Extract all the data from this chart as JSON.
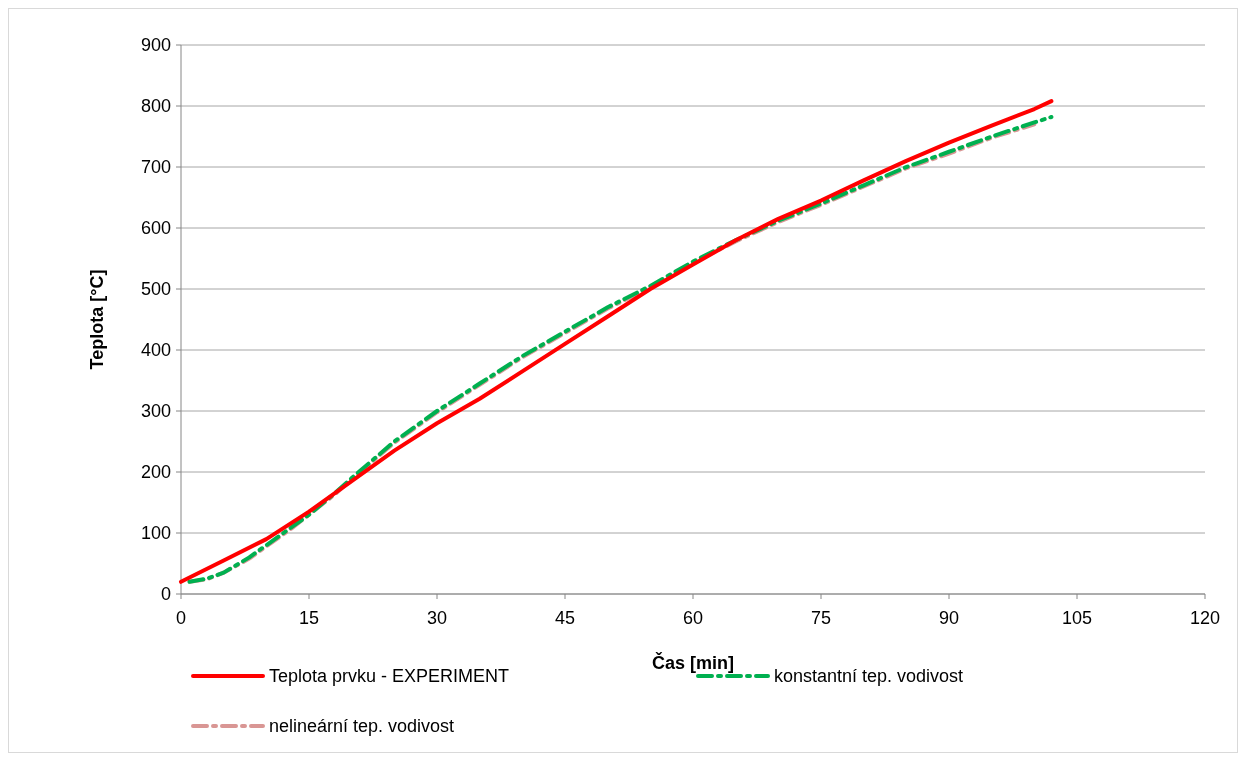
{
  "chart_data": {
    "type": "line",
    "xlabel": "Čas [min]",
    "ylabel": "Teplota [°C]",
    "xlim": [
      0,
      120
    ],
    "xticks": [
      0,
      15,
      30,
      45,
      60,
      75,
      90,
      105,
      120
    ],
    "ylim": [
      0,
      900
    ],
    "yticks": [
      0,
      100,
      200,
      300,
      400,
      500,
      600,
      700,
      800,
      900
    ],
    "grid": "y",
    "legend": "bottom",
    "series": [
      {
        "name": "Teplota prvku - EXPERIMENT",
        "color": "#ff0000",
        "line_style": "solid",
        "x": [
          0,
          5,
          10,
          15,
          20,
          25,
          30,
          35,
          40,
          45,
          50,
          55,
          60,
          65,
          70,
          75,
          80,
          85,
          90,
          95,
          100,
          102
        ],
        "values": [
          20,
          55,
          90,
          135,
          185,
          235,
          280,
          320,
          365,
          410,
          455,
          500,
          540,
          580,
          615,
          645,
          678,
          710,
          740,
          768,
          795,
          808
        ]
      },
      {
        "name": "konstantní tep. vodivost",
        "color": "#00b050",
        "line_style": "dashed",
        "x": [
          1,
          3,
          5,
          8,
          10,
          13,
          15,
          18,
          20,
          25,
          30,
          35,
          40,
          45,
          50,
          55,
          60,
          65,
          70,
          75,
          80,
          85,
          90,
          95,
          100,
          102
        ],
        "values": [
          20,
          25,
          35,
          60,
          80,
          110,
          130,
          165,
          190,
          250,
          300,
          345,
          390,
          430,
          470,
          505,
          545,
          580,
          612,
          640,
          670,
          700,
          725,
          750,
          773,
          782
        ]
      },
      {
        "name": "nelineární tep. vodivost",
        "color": "#d99694",
        "line_style": "dashed",
        "x": [
          1,
          3,
          5,
          8,
          10,
          13,
          15,
          18,
          20,
          25,
          30,
          35,
          40,
          45,
          50,
          55,
          60,
          65,
          70,
          75,
          80,
          85,
          90,
          95,
          100
        ],
        "values": [
          20,
          24,
          35,
          58,
          78,
          108,
          130,
          163,
          188,
          248,
          298,
          343,
          388,
          428,
          468,
          503,
          543,
          578,
          610,
          638,
          668,
          698,
          722,
          748,
          770
        ]
      }
    ]
  }
}
